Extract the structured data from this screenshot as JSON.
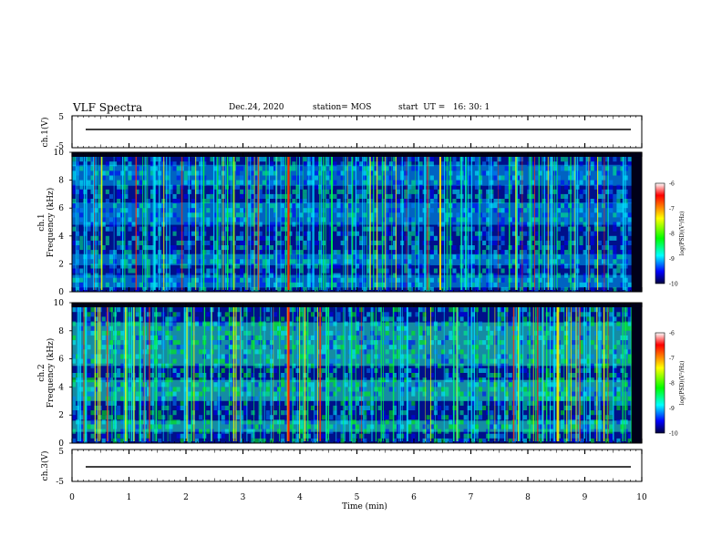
{
  "header": {
    "title": "VLF Spectra",
    "date": "Dec.24, 2020",
    "station": "station= MOS",
    "start_ut": "start  UT =   16: 30: 1"
  },
  "axes": {
    "xlabel": "Time  (min)",
    "x_ticks": [
      "0",
      "1",
      "2",
      "3",
      "4",
      "5",
      "6",
      "7",
      "8",
      "9",
      "10"
    ],
    "ch1v_label": "ch.1(V)",
    "ch3v_label": "ch.3(V)",
    "v_ticks": [
      "5",
      "-5"
    ],
    "spec1_label": "ch.1",
    "spec2_label": "ch.2",
    "freq_label": "Frequency  (kHz)",
    "freq_ticks": [
      "0",
      "2",
      "4",
      "6",
      "8",
      "10"
    ]
  },
  "colorbar": {
    "label": "log(PSD)(V²/Hz)",
    "ticks": [
      "-6",
      "-7",
      "-8",
      "-9",
      "-10"
    ],
    "colors": [
      "#ffffff",
      "#ff0000",
      "#ffff00",
      "#00ff00",
      "#00ffff",
      "#0000ff",
      "#000040"
    ]
  },
  "chart_data": [
    {
      "type": "line",
      "panel": "ch.1(V)",
      "ylabel": "ch.1(V)",
      "xlim": [
        0,
        10
      ],
      "ylim": [
        -5,
        5
      ],
      "x": [
        0,
        10
      ],
      "values": [
        0,
        0
      ]
    },
    {
      "type": "heatmap",
      "panel": "ch.1 spectrogram",
      "ylabel": "Frequency  (kHz)",
      "xlabel": "Time  (min)",
      "xlim": [
        0,
        10
      ],
      "ylim": [
        0,
        10
      ],
      "data_end_min": 9.82,
      "value_range": [
        -10,
        -6
      ],
      "value_label": "log(PSD)(V²/Hz)",
      "band_khz": [
        [
          0.3,
          1.2
        ],
        [
          1.9,
          2.7
        ],
        [
          4.8,
          6.4
        ],
        [
          7.6,
          9.1
        ]
      ],
      "strong_sferic_min": [
        3.8
      ]
    },
    {
      "type": "heatmap",
      "panel": "ch.2 spectrogram",
      "ylabel": "Frequency  (kHz)",
      "xlabel": "Time  (min)",
      "xlim": [
        0,
        10
      ],
      "ylim": [
        0,
        10
      ],
      "data_end_min": 9.82,
      "value_range": [
        -10,
        -6
      ],
      "value_label": "log(PSD)(V²/Hz)",
      "band_khz": [
        [
          0.8,
          1.6
        ],
        [
          3.0,
          4.5
        ],
        [
          5.5,
          8.6
        ]
      ],
      "strong_sferic_min": [
        3.8
      ]
    },
    {
      "type": "line",
      "panel": "ch.3(V)",
      "ylabel": "ch.3(V)",
      "xlim": [
        0,
        10
      ],
      "ylim": [
        -5,
        5
      ],
      "x": [
        0,
        10
      ],
      "values": [
        0,
        0
      ]
    }
  ]
}
